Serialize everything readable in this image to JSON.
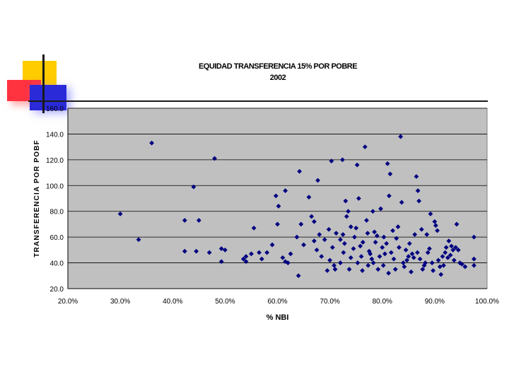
{
  "chart_data": {
    "type": "scatter",
    "title": "EQUIDAD TRANSFERENCIA 15% POR POBRE",
    "subtitle": "2002",
    "xlabel": "% NBI",
    "ylabel": "TRANSFERENCIA POR POBF",
    "xlim": [
      0.2,
      1.0
    ],
    "ylim": [
      20,
      160
    ],
    "x_ticks": [
      "20.0%",
      "30.0%",
      "40.0%",
      "50.0%",
      "60.0%",
      "70.0%",
      "80.0%",
      "90.0%",
      "100.0%"
    ],
    "y_ticks": [
      "20.0",
      "40.0",
      "60.0",
      "80.0",
      "100.0",
      "120.0",
      "140.0",
      "160.0"
    ],
    "grid": true,
    "plot_background": "#c0c0c0",
    "marker_color": "#000080",
    "series": [
      {
        "points": [
          [
            0.3,
            78
          ],
          [
            0.335,
            58
          ],
          [
            0.36,
            133
          ],
          [
            0.423,
            73
          ],
          [
            0.423,
            49
          ],
          [
            0.44,
            99
          ],
          [
            0.445,
            49
          ],
          [
            0.45,
            73
          ],
          [
            0.47,
            48
          ],
          [
            0.48,
            121
          ],
          [
            0.493,
            41
          ],
          [
            0.493,
            51
          ],
          [
            0.5,
            50
          ],
          [
            0.535,
            43
          ],
          [
            0.54,
            41
          ],
          [
            0.54,
            45
          ],
          [
            0.55,
            47
          ],
          [
            0.555,
            67
          ],
          [
            0.565,
            48
          ],
          [
            0.57,
            43
          ],
          [
            0.58,
            48
          ],
          [
            0.59,
            54
          ],
          [
            0.597,
            92
          ],
          [
            0.6,
            70
          ],
          [
            0.602,
            84
          ],
          [
            0.61,
            44
          ],
          [
            0.615,
            96
          ],
          [
            0.615,
            41
          ],
          [
            0.62,
            40
          ],
          [
            0.625,
            47
          ],
          [
            0.637,
            60
          ],
          [
            0.64,
            30
          ],
          [
            0.642,
            111
          ],
          [
            0.645,
            70
          ],
          [
            0.65,
            54
          ],
          [
            0.66,
            91
          ],
          [
            0.665,
            76
          ],
          [
            0.67,
            72
          ],
          [
            0.67,
            57
          ],
          [
            0.675,
            50
          ],
          [
            0.677,
            104
          ],
          [
            0.68,
            62
          ],
          [
            0.684,
            45
          ],
          [
            0.69,
            58
          ],
          [
            0.695,
            34
          ],
          [
            0.698,
            66
          ],
          [
            0.7,
            42
          ],
          [
            0.703,
            119
          ],
          [
            0.705,
            52
          ],
          [
            0.708,
            38
          ],
          [
            0.71,
            35
          ],
          [
            0.712,
            63
          ],
          [
            0.72,
            40
          ],
          [
            0.72,
            58
          ],
          [
            0.724,
            120
          ],
          [
            0.725,
            62
          ],
          [
            0.726,
            48
          ],
          [
            0.728,
            55
          ],
          [
            0.73,
            88
          ],
          [
            0.732,
            76
          ],
          [
            0.735,
            80
          ],
          [
            0.737,
            35
          ],
          [
            0.74,
            44
          ],
          [
            0.74,
            68
          ],
          [
            0.745,
            51
          ],
          [
            0.747,
            60
          ],
          [
            0.75,
            67
          ],
          [
            0.752,
            116
          ],
          [
            0.753,
            40
          ],
          [
            0.755,
            90
          ],
          [
            0.758,
            53
          ],
          [
            0.76,
            45
          ],
          [
            0.762,
            34
          ],
          [
            0.763,
            56
          ],
          [
            0.767,
            130
          ],
          [
            0.77,
            73
          ],
          [
            0.772,
            63
          ],
          [
            0.773,
            38
          ],
          [
            0.775,
            49
          ],
          [
            0.777,
            47
          ],
          [
            0.78,
            43
          ],
          [
            0.782,
            80
          ],
          [
            0.783,
            40
          ],
          [
            0.785,
            64
          ],
          [
            0.787,
            56
          ],
          [
            0.79,
            61
          ],
          [
            0.792,
            35
          ],
          [
            0.795,
            45
          ],
          [
            0.797,
            82
          ],
          [
            0.8,
            52
          ],
          [
            0.802,
            38
          ],
          [
            0.803,
            60
          ],
          [
            0.805,
            47
          ],
          [
            0.808,
            55
          ],
          [
            0.81,
            117
          ],
          [
            0.812,
            32
          ],
          [
            0.813,
            92
          ],
          [
            0.815,
            109
          ],
          [
            0.817,
            48
          ],
          [
            0.82,
            65
          ],
          [
            0.822,
            43
          ],
          [
            0.825,
            35
          ],
          [
            0.827,
            59
          ],
          [
            0.83,
            68
          ],
          [
            0.832,
            52
          ],
          [
            0.835,
            138
          ],
          [
            0.837,
            87
          ],
          [
            0.84,
            40
          ],
          [
            0.842,
            37
          ],
          [
            0.845,
            50
          ],
          [
            0.847,
            42
          ],
          [
            0.85,
            45
          ],
          [
            0.852,
            55
          ],
          [
            0.855,
            33
          ],
          [
            0.857,
            47
          ],
          [
            0.86,
            44
          ],
          [
            0.862,
            62
          ],
          [
            0.865,
            107
          ],
          [
            0.867,
            48
          ],
          [
            0.868,
            96
          ],
          [
            0.87,
            88
          ],
          [
            0.872,
            43
          ],
          [
            0.875,
            66
          ],
          [
            0.877,
            35
          ],
          [
            0.88,
            38
          ],
          [
            0.882,
            40
          ],
          [
            0.885,
            62
          ],
          [
            0.887,
            48
          ],
          [
            0.89,
            51
          ],
          [
            0.892,
            78
          ],
          [
            0.895,
            40
          ],
          [
            0.897,
            34
          ],
          [
            0.9,
            72
          ],
          [
            0.902,
            69
          ],
          [
            0.905,
            65
          ],
          [
            0.907,
            42
          ],
          [
            0.91,
            37
          ],
          [
            0.912,
            31
          ],
          [
            0.915,
            45
          ],
          [
            0.917,
            38
          ],
          [
            0.92,
            48
          ],
          [
            0.922,
            52
          ],
          [
            0.925,
            44
          ],
          [
            0.927,
            57
          ],
          [
            0.93,
            46
          ],
          [
            0.932,
            53
          ],
          [
            0.935,
            50
          ],
          [
            0.937,
            42
          ],
          [
            0.94,
            52
          ],
          [
            0.942,
            70
          ],
          [
            0.945,
            50
          ],
          [
            0.948,
            40
          ],
          [
            0.952,
            39
          ],
          [
            0.958,
            37
          ],
          [
            0.975,
            60
          ],
          [
            0.975,
            43
          ],
          [
            0.975,
            38
          ]
        ]
      }
    ]
  }
}
